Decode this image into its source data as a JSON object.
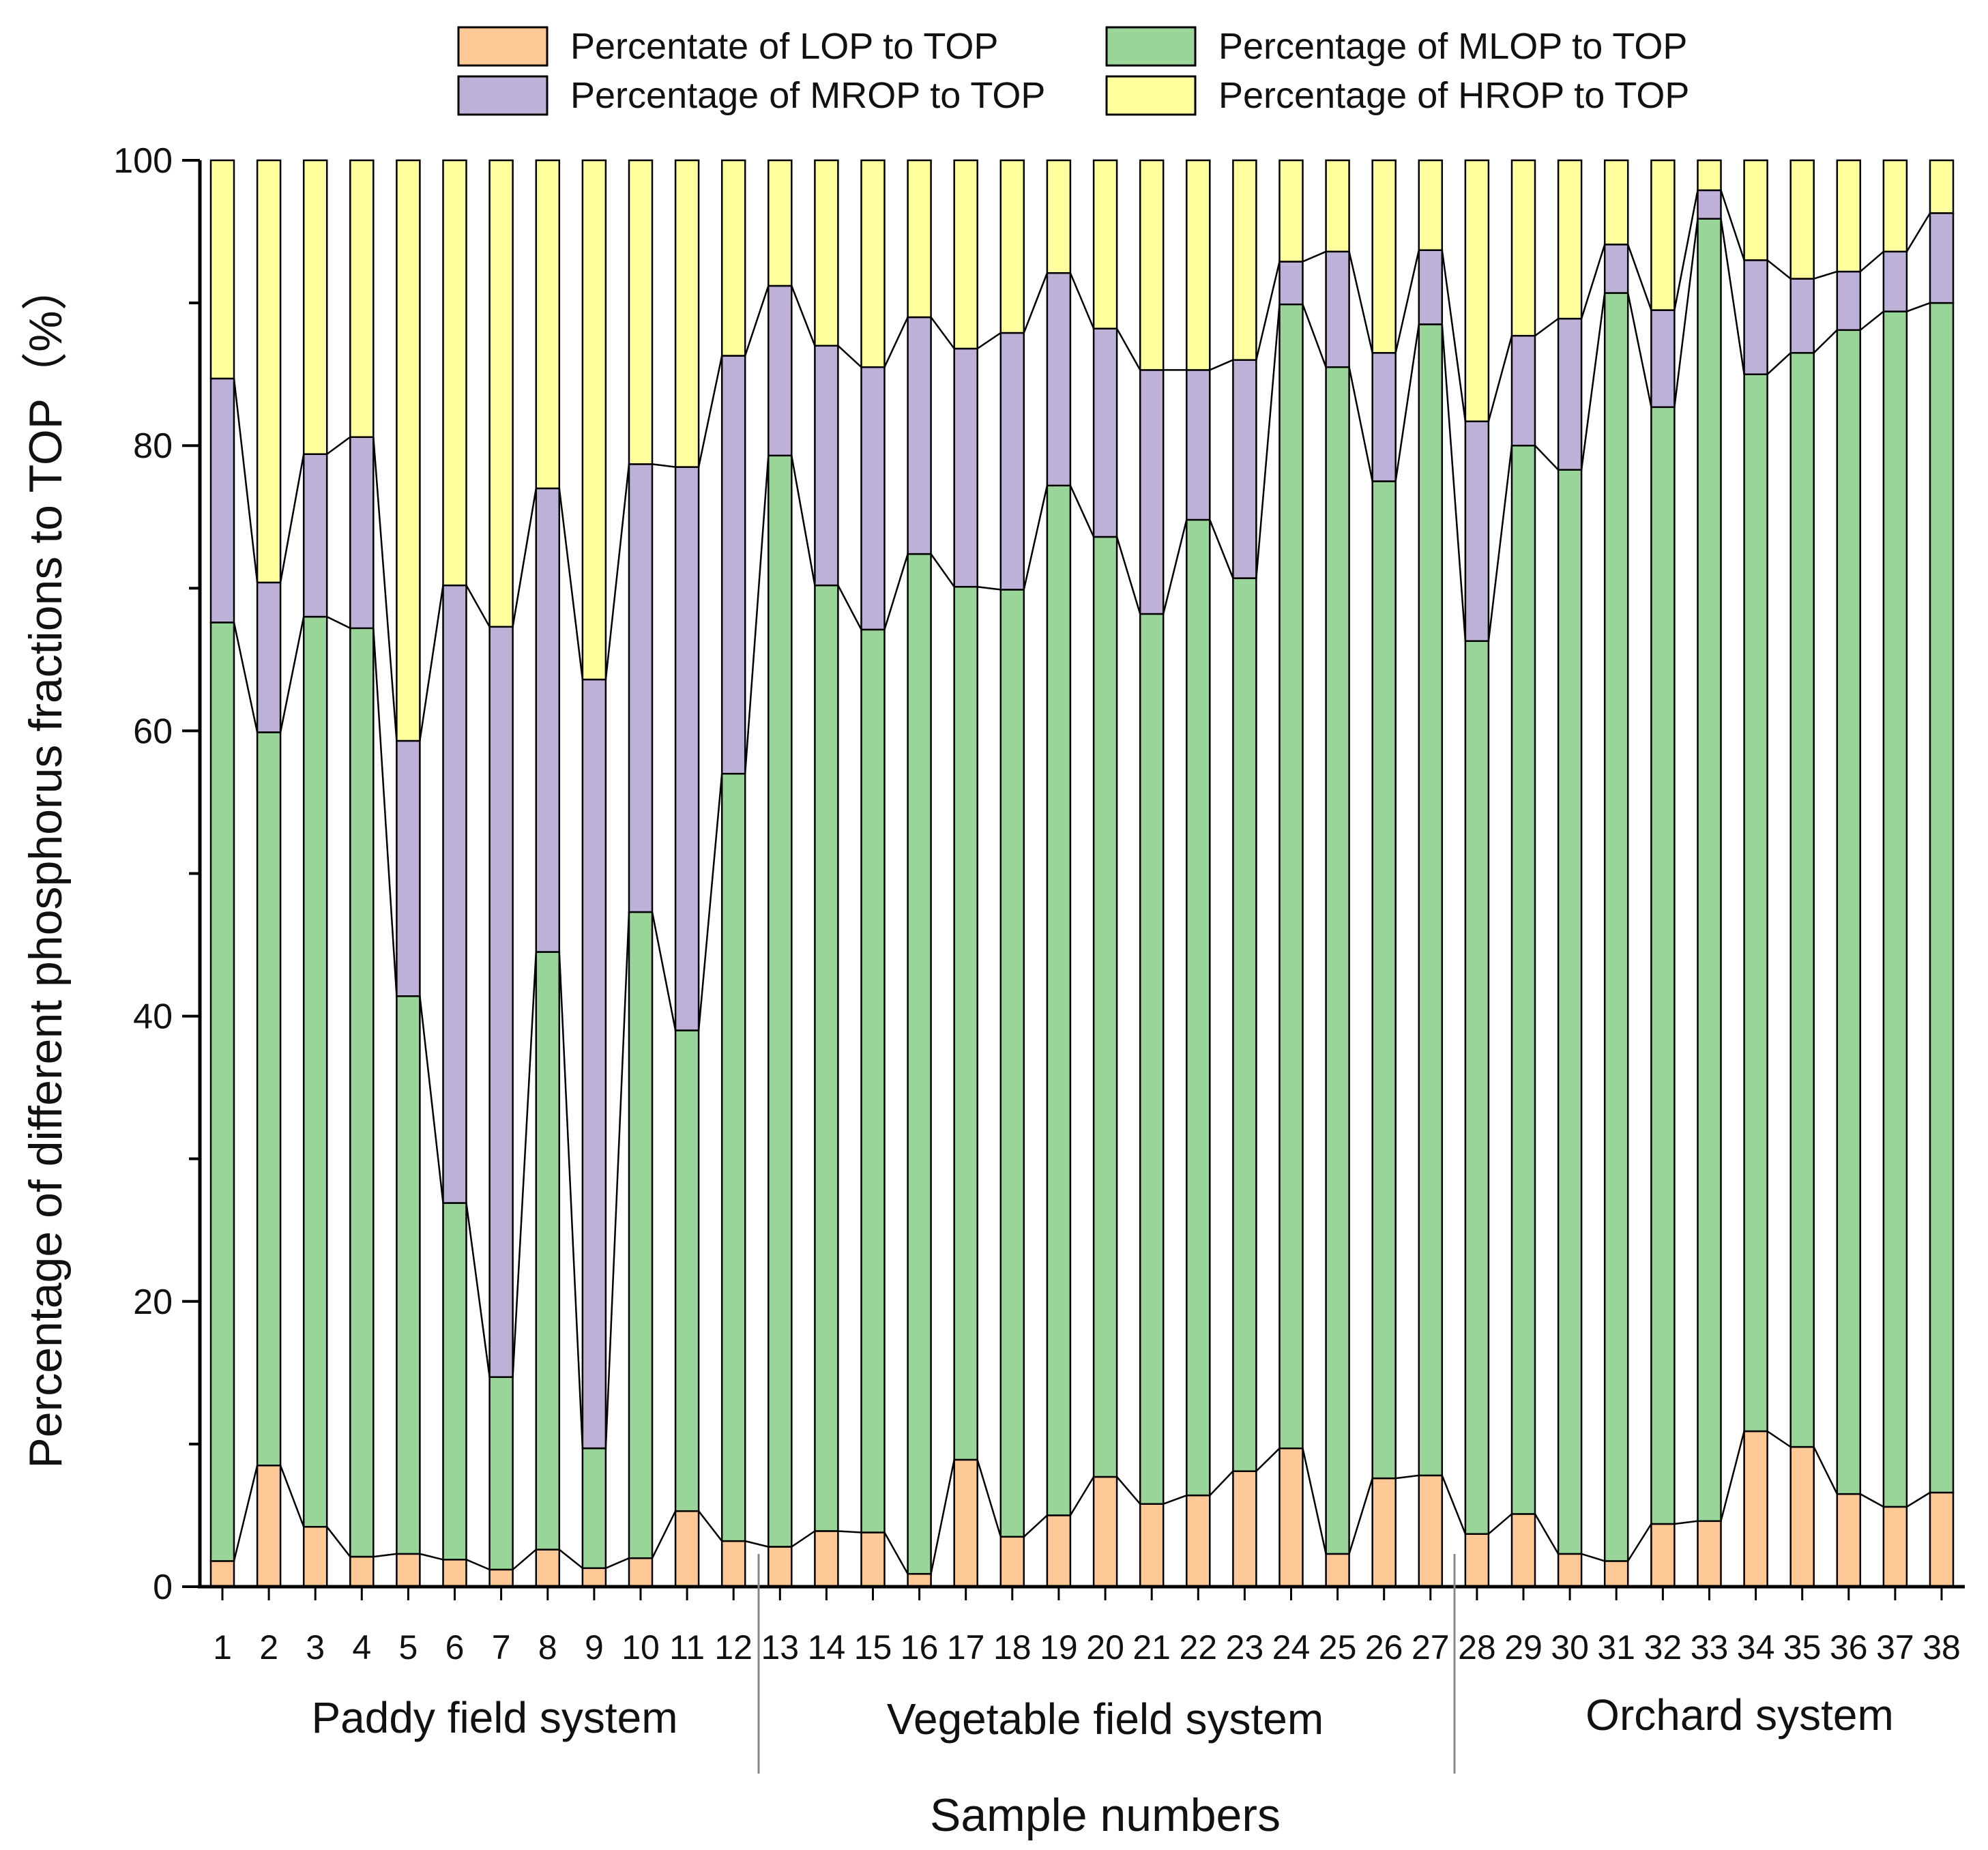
{
  "chart_data": {
    "type": "bar",
    "stacked": true,
    "title": "",
    "xlabel": "Sample numbers",
    "ylabel": "Percentage of different phosphorus fractions to TOP（%）",
    "ylim": [
      0,
      100
    ],
    "yticks": [
      "0",
      "20",
      "40",
      "60",
      "80",
      "100"
    ],
    "categories": [
      "1",
      "2",
      "3",
      "4",
      "5",
      "6",
      "7",
      "8",
      "9",
      "10",
      "11",
      "12",
      "13",
      "14",
      "15",
      "16",
      "17",
      "18",
      "19",
      "20",
      "21",
      "22",
      "23",
      "24",
      "25",
      "26",
      "27",
      "28",
      "29",
      "30",
      "31",
      "32",
      "33",
      "34",
      "35",
      "36",
      "37",
      "38"
    ],
    "groups": [
      {
        "label": "Paddy field system",
        "samples": "1-12"
      },
      {
        "label": "Vegetable field system",
        "samples": "13-27"
      },
      {
        "label": "Orchard system",
        "samples": "28-38"
      }
    ],
    "legend_position": "top",
    "series": [
      {
        "name": "Percentate of LOP to TOP",
        "color": "#FFC896",
        "values": [
          1.8,
          8.5,
          4.2,
          2.1,
          2.3,
          1.9,
          1.2,
          2.6,
          1.3,
          2.0,
          5.3,
          3.2,
          2.8,
          3.9,
          3.8,
          0.9,
          8.9,
          3.5,
          5.0,
          7.7,
          5.8,
          6.4,
          8.1,
          9.7,
          2.3,
          7.6,
          7.8,
          3.7,
          5.1,
          2.3,
          1.8,
          4.4,
          4.6,
          10.9,
          9.8,
          6.5,
          5.6,
          6.6
        ]
      },
      {
        "name": "Percentage of MLOP to TOP",
        "color": "#99D599",
        "values": [
          65.8,
          51.4,
          63.8,
          65.1,
          39.1,
          25.0,
          13.5,
          41.9,
          8.4,
          45.3,
          33.7,
          53.8,
          76.5,
          66.3,
          63.3,
          71.5,
          61.2,
          66.4,
          72.2,
          65.9,
          62.4,
          68.4,
          62.6,
          80.2,
          83.2,
          69.9,
          80.7,
          62.6,
          74.9,
          76.0,
          88.9,
          78.3,
          91.3,
          74.1,
          76.7,
          81.6,
          83.8,
          83.4
        ]
      },
      {
        "name": "Percentage of MROP to TOP",
        "color": "#BEB1D8",
        "values": [
          17.1,
          10.5,
          11.4,
          13.4,
          17.9,
          43.3,
          52.6,
          32.5,
          53.9,
          31.4,
          39.5,
          29.3,
          11.9,
          16.8,
          18.4,
          16.6,
          16.7,
          18.0,
          14.9,
          14.6,
          17.1,
          10.5,
          15.3,
          3.0,
          8.1,
          9.0,
          5.2,
          15.4,
          7.7,
          10.6,
          3.4,
          6.8,
          2.0,
          8.0,
          5.2,
          4.1,
          4.2,
          6.3
        ]
      },
      {
        "name": "Percentage of HROP to TOP",
        "color": "#FFFF9E",
        "values": [
          15.3,
          29.6,
          20.6,
          19.4,
          40.7,
          29.8,
          32.7,
          23.0,
          36.4,
          21.3,
          21.5,
          13.7,
          8.8,
          13.0,
          14.5,
          11.0,
          13.2,
          12.1,
          7.9,
          11.8,
          14.7,
          14.7,
          14.0,
          7.1,
          6.4,
          13.5,
          6.3,
          18.3,
          12.3,
          11.1,
          5.9,
          10.5,
          2.1,
          7.0,
          8.3,
          7.8,
          6.4,
          3.7
        ]
      }
    ]
  }
}
